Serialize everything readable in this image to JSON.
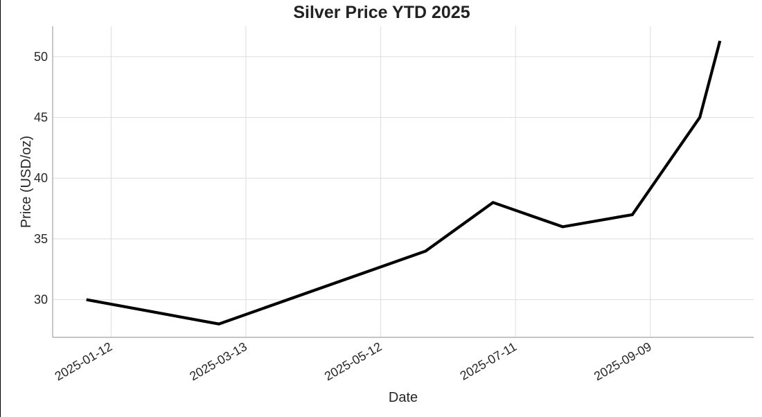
{
  "chart_data": {
    "type": "line",
    "title": "Silver Price YTD 2025",
    "xlabel": "Date",
    "ylabel": "Price (USD/oz)",
    "x_ticks": [
      "2025-01-12",
      "2025-03-13",
      "2025-05-12",
      "2025-07-11",
      "2025-09-09"
    ],
    "y_ticks": [
      30,
      35,
      40,
      45,
      50
    ],
    "xlim": [
      "2024-12-17",
      "2025-10-25"
    ],
    "ylim": [
      26.9,
      52.5
    ],
    "grid": true,
    "line_color": "#000000",
    "series": [
      {
        "x": [
          "2025-01-01",
          "2025-03-01",
          "2025-06-01",
          "2025-07-01",
          "2025-08-01",
          "2025-09-01",
          "2025-10-01",
          "2025-10-10"
        ],
        "values": [
          30,
          28,
          34,
          38,
          36,
          37,
          45,
          51.3
        ]
      }
    ]
  }
}
